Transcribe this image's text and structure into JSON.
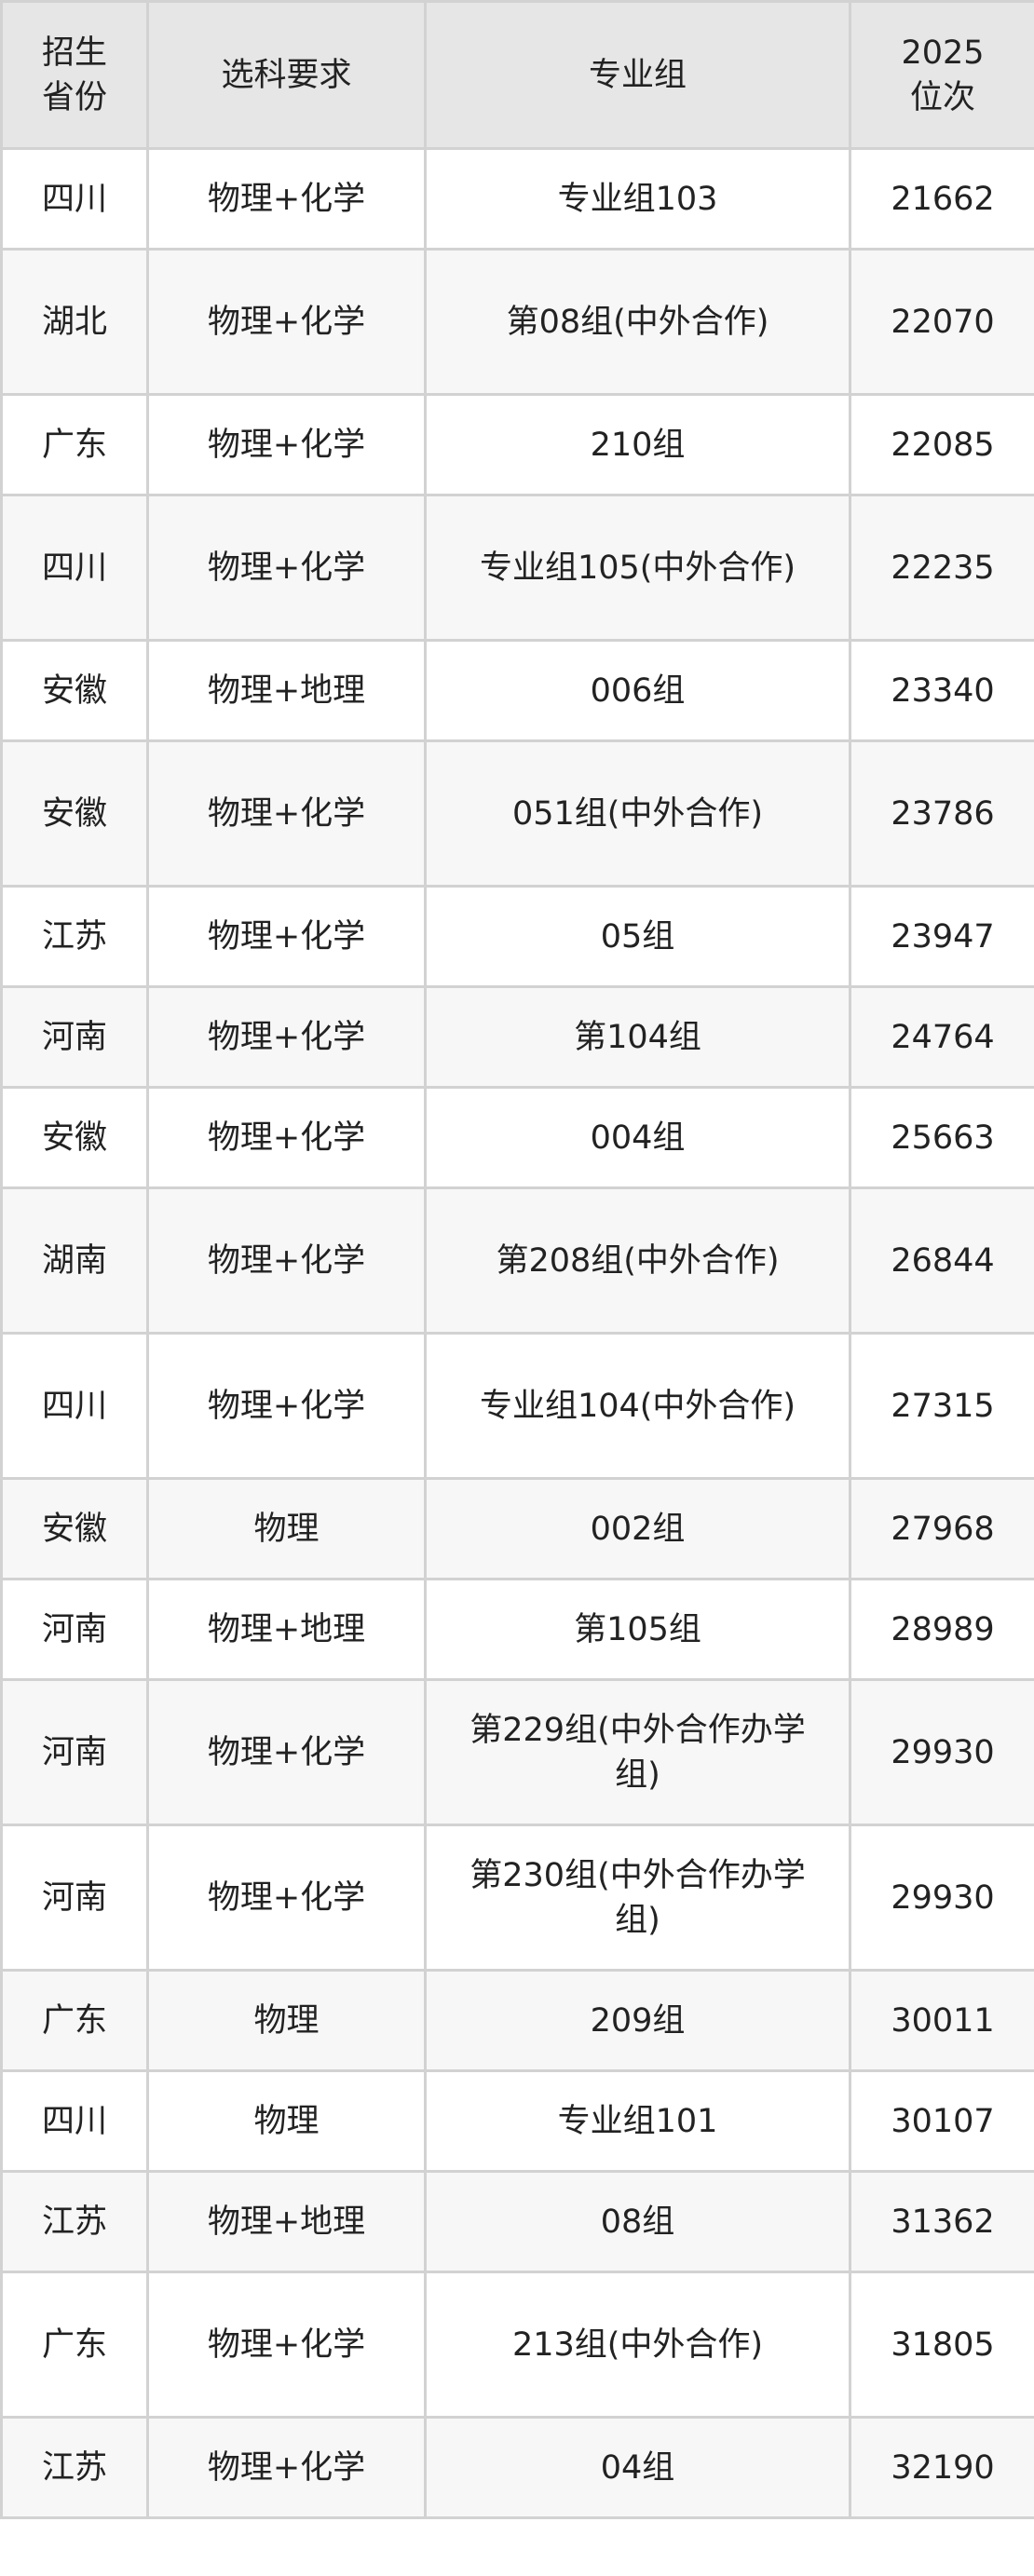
{
  "headers": [
    "招生省份",
    "选科要求",
    "专业组",
    "2025位次"
  ],
  "header_lines": [
    [
      "招生",
      "省份"
    ],
    [
      "选科要求"
    ],
    [
      "专业组"
    ],
    [
      "2025",
      "位次"
    ]
  ],
  "colors": {
    "header_bg": "#e6e6e6",
    "stripe_bg": "#f7f7f7",
    "border": "#d2d2d2"
  },
  "rows": [
    {
      "province": "四川",
      "subjects": "物理+化学",
      "group": "专业组103",
      "rank": "21662"
    },
    {
      "province": "湖北",
      "subjects": "物理+化学",
      "group": "第08组(中外合作)",
      "rank": "22070"
    },
    {
      "province": "广东",
      "subjects": "物理+化学",
      "group": "210组",
      "rank": "22085"
    },
    {
      "province": "四川",
      "subjects": "物理+化学",
      "group": "专业组105(中外合作)",
      "rank": "22235"
    },
    {
      "province": "安徽",
      "subjects": "物理+地理",
      "group": "006组",
      "rank": "23340"
    },
    {
      "province": "安徽",
      "subjects": "物理+化学",
      "group": "051组(中外合作)",
      "rank": "23786"
    },
    {
      "province": "江苏",
      "subjects": "物理+化学",
      "group": "05组",
      "rank": "23947"
    },
    {
      "province": "河南",
      "subjects": "物理+化学",
      "group": "第104组",
      "rank": "24764"
    },
    {
      "province": "安徽",
      "subjects": "物理+化学",
      "group": "004组",
      "rank": "25663"
    },
    {
      "province": "湖南",
      "subjects": "物理+化学",
      "group": "第208组(中外合作)",
      "rank": "26844"
    },
    {
      "province": "四川",
      "subjects": "物理+化学",
      "group": "专业组104(中外合作)",
      "rank": "27315"
    },
    {
      "province": "安徽",
      "subjects": "物理",
      "group": "002组",
      "rank": "27968"
    },
    {
      "province": "河南",
      "subjects": "物理+地理",
      "group": "第105组",
      "rank": "28989"
    },
    {
      "province": "河南",
      "subjects": "物理+化学",
      "group": "第229组(中外合作办学组)",
      "rank": "29930"
    },
    {
      "province": "河南",
      "subjects": "物理+化学",
      "group": "第230组(中外合作办学组)",
      "rank": "29930"
    },
    {
      "province": "广东",
      "subjects": "物理",
      "group": "209组",
      "rank": "30011"
    },
    {
      "province": "四川",
      "subjects": "物理",
      "group": "专业组101",
      "rank": "30107"
    },
    {
      "province": "江苏",
      "subjects": "物理+地理",
      "group": "08组",
      "rank": "31362"
    },
    {
      "province": "广东",
      "subjects": "物理+化学",
      "group": "213组(中外合作)",
      "rank": "31805"
    },
    {
      "province": "江苏",
      "subjects": "物理+化学",
      "group": "04组",
      "rank": "32190"
    }
  ]
}
